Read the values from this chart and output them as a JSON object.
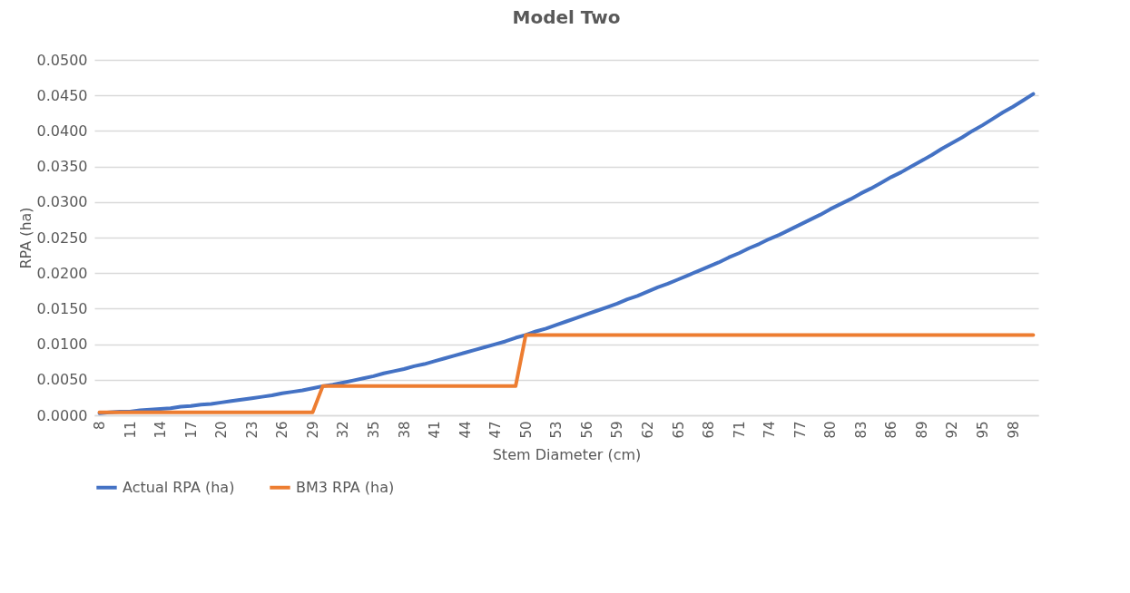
{
  "chart_data": {
    "type": "line",
    "title": "Model Two",
    "xlabel": "Stem Diameter (cm)",
    "ylabel": "RPA (ha)",
    "categories": [
      "8",
      null,
      null,
      "11",
      null,
      null,
      "14",
      null,
      null,
      "17",
      null,
      null,
      "20",
      null,
      null,
      "23",
      null,
      null,
      "26",
      null,
      null,
      "29",
      null,
      null,
      "32",
      null,
      null,
      "35",
      null,
      null,
      "38",
      null,
      null,
      "41",
      null,
      null,
      "44",
      null,
      null,
      "47",
      null,
      null,
      "50",
      null,
      null,
      "53",
      null,
      null,
      "56",
      null,
      null,
      "59",
      null,
      null,
      "62",
      null,
      null,
      "65",
      null,
      null,
      "68",
      null,
      null,
      "71",
      null,
      null,
      "74",
      null,
      null,
      "77",
      null,
      null,
      "80",
      null,
      null,
      "83",
      null,
      null,
      "86",
      null,
      null,
      "89",
      null,
      null,
      "92",
      null,
      null,
      "95",
      null,
      null,
      "98",
      null,
      null
    ],
    "series": [
      {
        "name": "Actual RPA (ha)",
        "color": "#4472c4",
        "values": [
          0.0003,
          0.0004,
          0.0005,
          0.0005,
          0.0007,
          0.0008,
          0.0009,
          0.001,
          0.0012,
          0.0013,
          0.0015,
          0.0016,
          0.0018,
          0.002,
          0.0022,
          0.0024,
          0.0026,
          0.0028,
          0.0031,
          0.0033,
          0.0035,
          0.0038,
          0.0041,
          0.0043,
          0.0046,
          0.0049,
          0.0052,
          0.0055,
          0.0059,
          0.0062,
          0.0065,
          0.0069,
          0.0072,
          0.0076,
          0.008,
          0.0084,
          0.0088,
          0.0092,
          0.0096,
          0.01,
          0.0104,
          0.0109,
          0.0113,
          0.0118,
          0.0122,
          0.0127,
          0.0132,
          0.0137,
          0.0142,
          0.0147,
          0.0152,
          0.0157,
          0.0163,
          0.0168,
          0.0174,
          0.018,
          0.0185,
          0.0191,
          0.0197,
          0.0203,
          0.0209,
          0.0215,
          0.0222,
          0.0228,
          0.0235,
          0.0241,
          0.0248,
          0.0254,
          0.0261,
          0.0268,
          0.0275,
          0.0282,
          0.029,
          0.0297,
          0.0304,
          0.0312,
          0.0319,
          0.0327,
          0.0335,
          0.0342,
          0.035,
          0.0358,
          0.0366,
          0.0375,
          0.0383,
          0.0391,
          0.04,
          0.0408,
          0.0417,
          0.0426,
          0.0434,
          0.0443,
          0.0452
        ]
      },
      {
        "name": "BM3 RPA (ha)",
        "color": "#ed7d31",
        "values": [
          0.0004,
          0.0004,
          0.0004,
          0.0004,
          0.0004,
          0.0004,
          0.0004,
          0.0004,
          0.0004,
          0.0004,
          0.0004,
          0.0004,
          0.0004,
          0.0004,
          0.0004,
          0.0004,
          0.0004,
          0.0004,
          0.0004,
          0.0004,
          0.0004,
          0.0004,
          0.0041,
          0.0041,
          0.0041,
          0.0041,
          0.0041,
          0.0041,
          0.0041,
          0.0041,
          0.0041,
          0.0041,
          0.0041,
          0.0041,
          0.0041,
          0.0041,
          0.0041,
          0.0041,
          0.0041,
          0.0041,
          0.0041,
          0.0041,
          0.0113,
          0.0113,
          0.0113,
          0.0113,
          0.0113,
          0.0113,
          0.0113,
          0.0113,
          0.0113,
          0.0113,
          0.0113,
          0.0113,
          0.0113,
          0.0113,
          0.0113,
          0.0113,
          0.0113,
          0.0113,
          0.0113,
          0.0113,
          0.0113,
          0.0113,
          0.0113,
          0.0113,
          0.0113,
          0.0113,
          0.0113,
          0.0113,
          0.0113,
          0.0113,
          0.0113,
          0.0113,
          0.0113,
          0.0113,
          0.0113,
          0.0113,
          0.0113,
          0.0113,
          0.0113,
          0.0113,
          0.0113,
          0.0113,
          0.0113,
          0.0113,
          0.0113,
          0.0113,
          0.0113,
          0.0113,
          0.0113,
          0.0113,
          0.0113
        ]
      }
    ],
    "ylim": [
      0,
      0.05
    ],
    "yticks": [
      {
        "value": 0,
        "label": "0.0000"
      },
      {
        "value": 0.005,
        "label": "0.0050"
      },
      {
        "value": 0.01,
        "label": "0.0100"
      },
      {
        "value": 0.015,
        "label": "0.0150"
      },
      {
        "value": 0.02,
        "label": "0.0200"
      },
      {
        "value": 0.025,
        "label": "0.0250"
      },
      {
        "value": 0.03,
        "label": "0.0300"
      },
      {
        "value": 0.035,
        "label": "0.0350"
      },
      {
        "value": 0.04,
        "label": "0.0400"
      },
      {
        "value": 0.045,
        "label": "0.0450"
      },
      {
        "value": 0.05,
        "label": "0.0500"
      }
    ],
    "grid": "y",
    "legend": "bottom",
    "marker": "none",
    "line_style": "solid"
  }
}
